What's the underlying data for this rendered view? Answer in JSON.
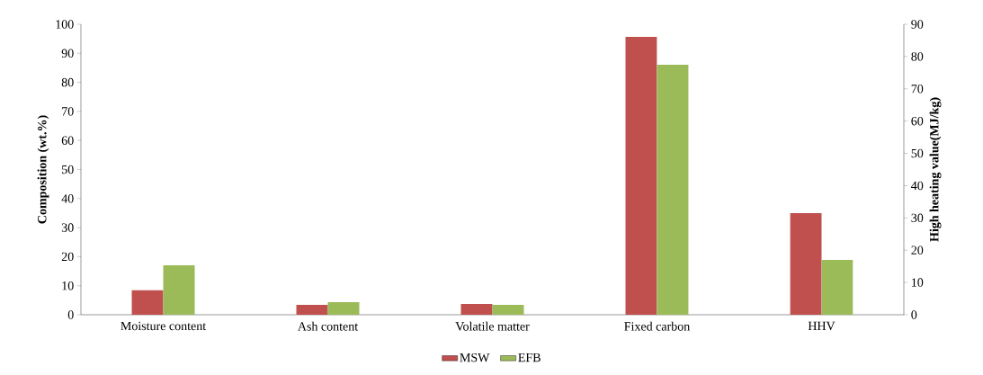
{
  "chart_data": {
    "type": "bar",
    "ylabel": "Composition (wt.%)",
    "y2label": "High heating value(MJ/kg)",
    "categories": [
      "Moisture content",
      "Ash content",
      "Volatile matter",
      "Fixed carbon",
      "HHV"
    ],
    "series": [
      {
        "name": "MSW",
        "color": "#c0504d",
        "values": [
          8.4,
          3.4,
          3.7,
          95.7,
          null
        ]
      },
      {
        "name": "EFB",
        "color": "#9bbb59",
        "values": [
          17.0,
          4.3,
          3.4,
          86.1,
          null
        ]
      },
      {
        "color": "#c0504d",
        "axis": "y2",
        "values": [
          null,
          null,
          null,
          null,
          31.5
        ]
      },
      {
        "color": "#9bbb59",
        "axis": "y2",
        "values": [
          null,
          null,
          null,
          null,
          17.0
        ]
      }
    ],
    "ylim": [
      0,
      100
    ],
    "yticks": [
      0,
      10,
      20,
      30,
      40,
      50,
      60,
      70,
      80,
      90,
      100
    ],
    "y2lim": [
      0,
      90
    ],
    "y2ticks": [
      0,
      10,
      20,
      30,
      40,
      50,
      60,
      70,
      80,
      90
    ],
    "legend": "bottom",
    "grid": false
  }
}
